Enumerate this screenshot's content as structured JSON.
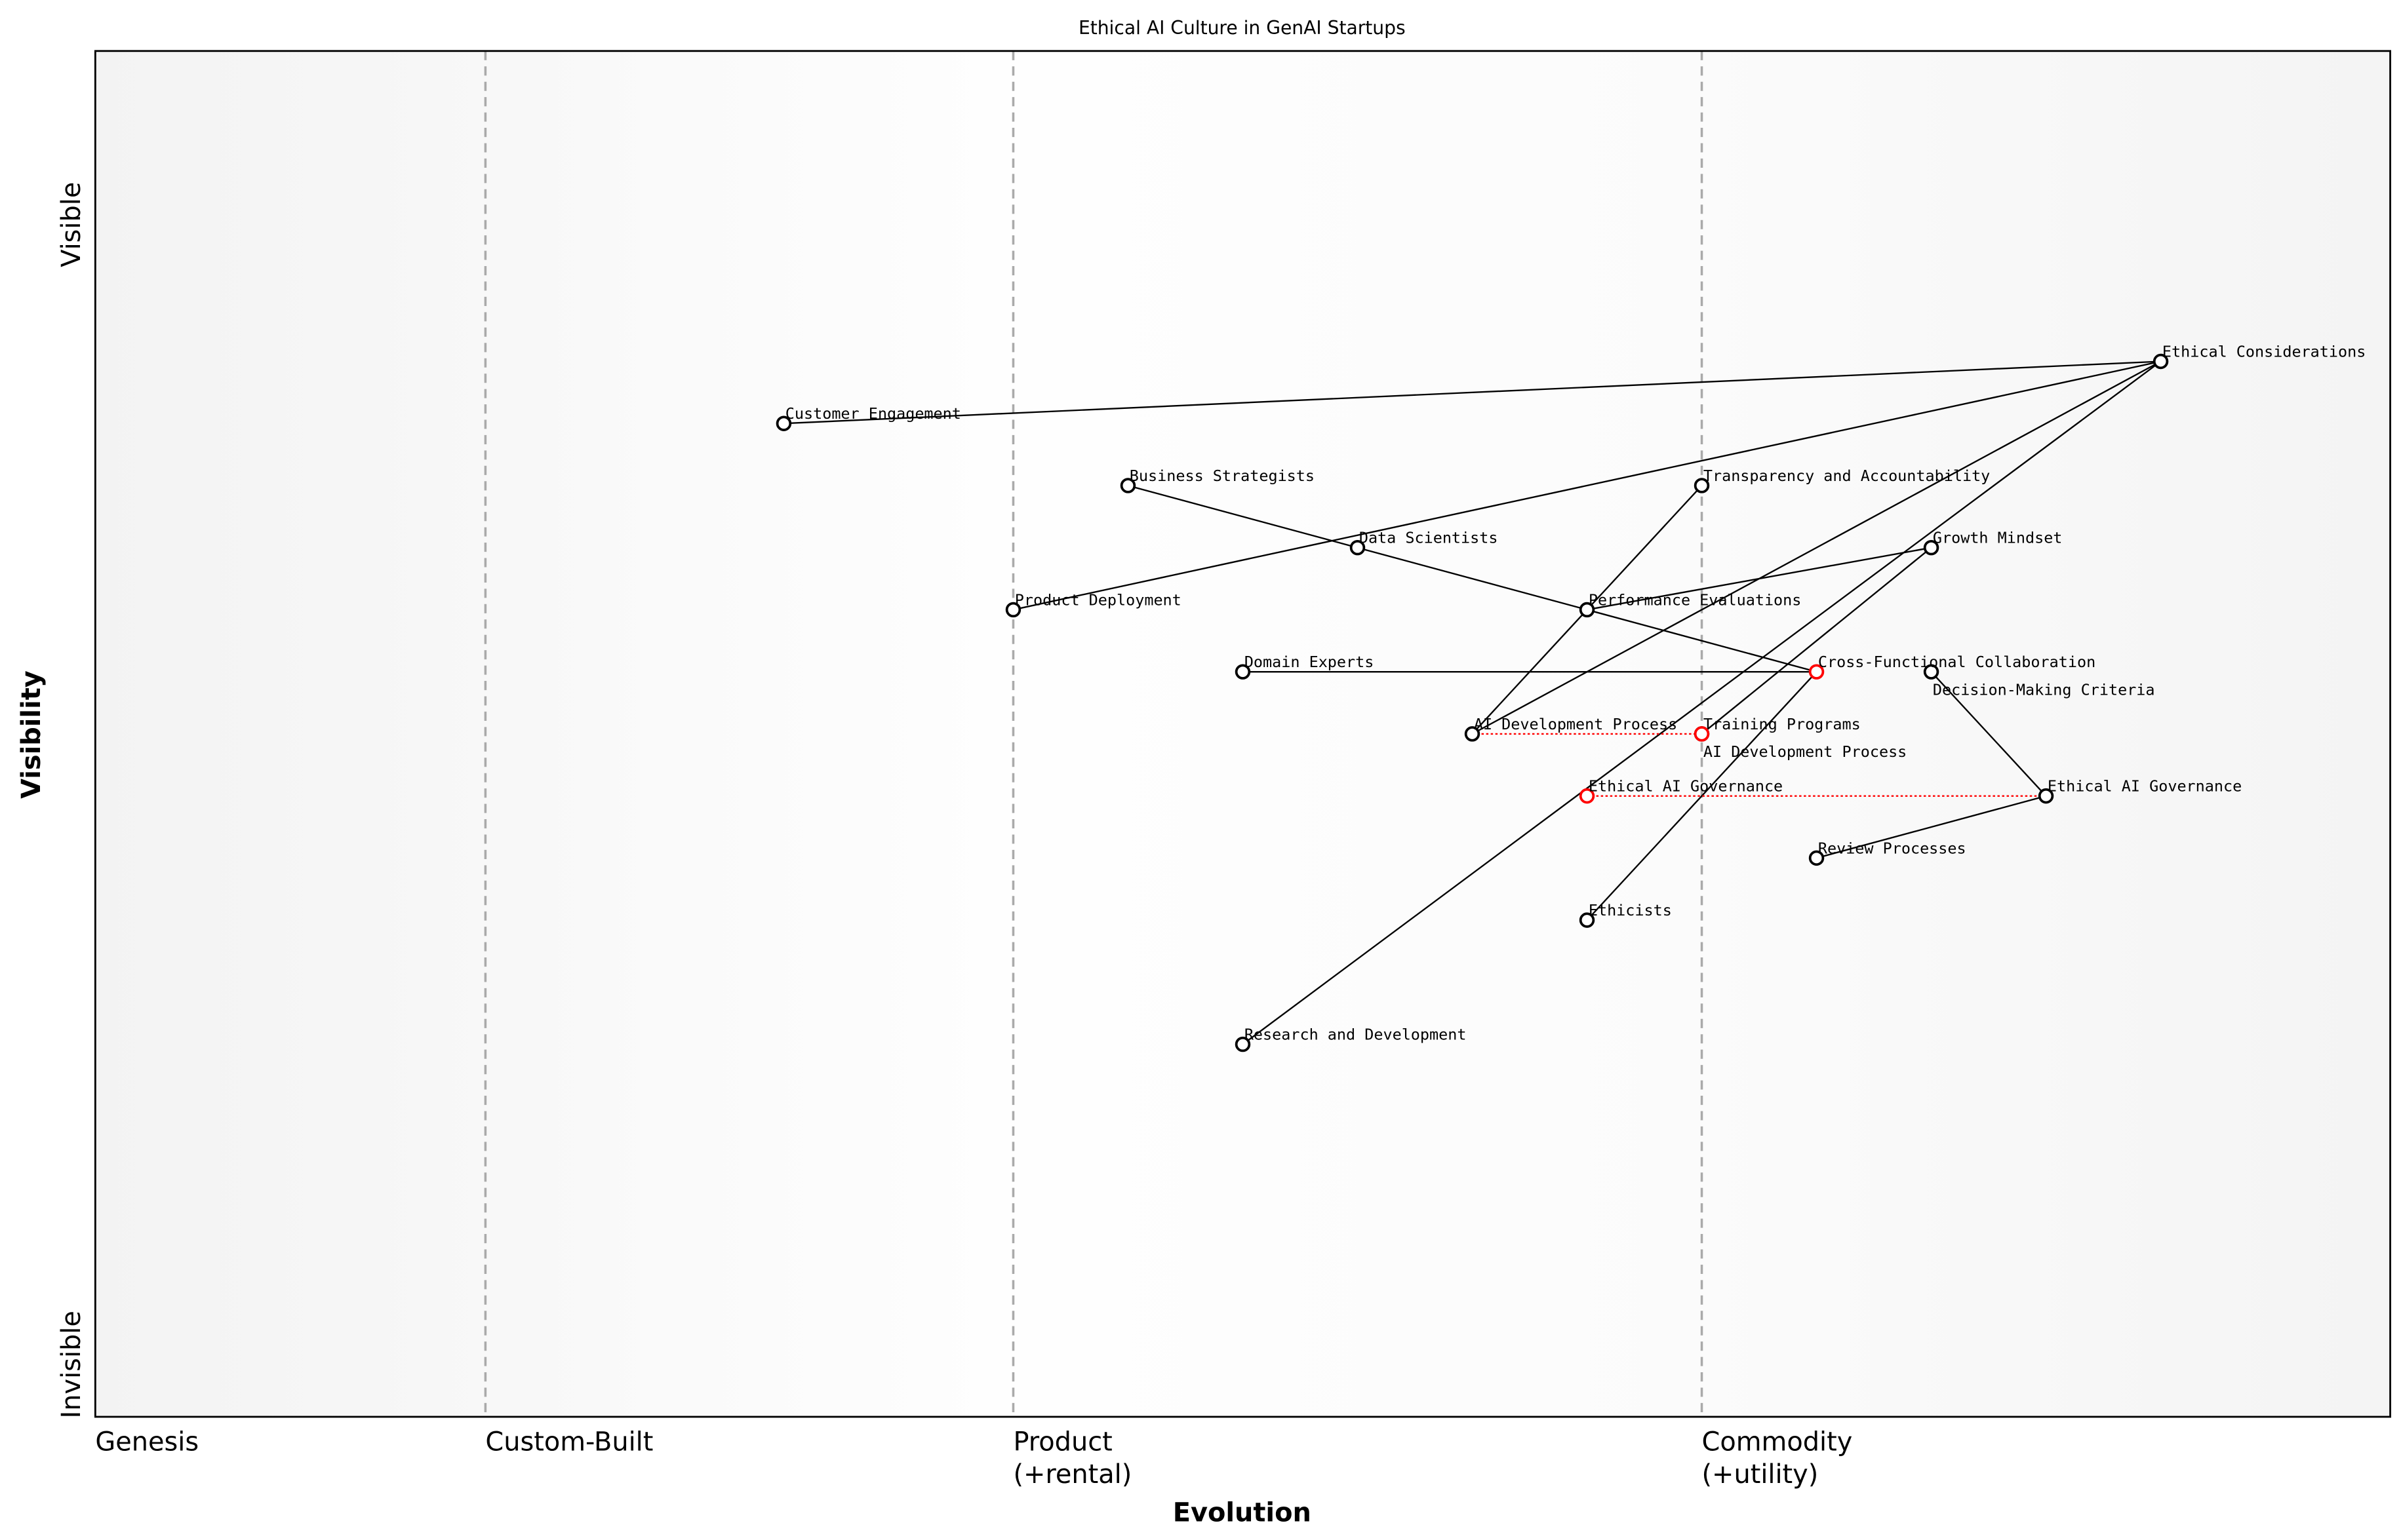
{
  "title": "Ethical AI Culture in GenAI Startups",
  "xlabel": "Evolution",
  "ylabel": "Visibility",
  "y_ticks": {
    "top": "Visible",
    "bottom": "Invisible"
  },
  "stages": [
    {
      "label": "Genesis",
      "at": 0.0
    },
    {
      "label": "Custom-Built",
      "at": 0.17
    },
    {
      "label": "Product\n(+rental)",
      "at": 0.4
    },
    {
      "label": "Commodity\n(+utility)",
      "at": 0.7
    }
  ],
  "chart_data": {
    "type": "wardley-map",
    "xlim": [
      0,
      1
    ],
    "ylim": [
      0,
      1.1
    ],
    "colors": {
      "node": "#000000",
      "evolving_node": "#ff0000",
      "evolution_link": "#ff0000",
      "stage_line": "#aaaaaa"
    },
    "nodes": [
      {
        "id": "ec",
        "label": "Ethical Considerations",
        "evolution": 0.9,
        "visibility": 0.85
      },
      {
        "id": "ce",
        "label": "Customer Engagement",
        "evolution": 0.3,
        "visibility": 0.8
      },
      {
        "id": "bs",
        "label": "Business Strategists",
        "evolution": 0.45,
        "visibility": 0.75
      },
      {
        "id": "ta",
        "label": "Transparency and Accountability",
        "evolution": 0.7,
        "visibility": 0.75
      },
      {
        "id": "ds",
        "label": "Data Scientists",
        "evolution": 0.55,
        "visibility": 0.7
      },
      {
        "id": "gm",
        "label": "Growth Mindset",
        "evolution": 0.8,
        "visibility": 0.7
      },
      {
        "id": "pd",
        "label": "Product Deployment",
        "evolution": 0.4,
        "visibility": 0.65
      },
      {
        "id": "pe",
        "label": "Performance Evaluations",
        "evolution": 0.65,
        "visibility": 0.65
      },
      {
        "id": "de",
        "label": "Domain Experts",
        "evolution": 0.5,
        "visibility": 0.6
      },
      {
        "id": "dmc",
        "label": "Decision-Making Criteria",
        "evolution": 0.8,
        "visibility": 0.6
      },
      {
        "id": "cfc",
        "label": "Cross-Functional Collaboration",
        "evolution": 0.75,
        "visibility": 0.6,
        "evolving": true
      },
      {
        "id": "adp",
        "label": "AI Development Process",
        "evolution": 0.6,
        "visibility": 0.55
      },
      {
        "id": "tp",
        "label": "Training Programs",
        "evolution": 0.7,
        "visibility": 0.55
      },
      {
        "id": "adp2",
        "label": "AI Development Process",
        "evolution": 0.7,
        "visibility": 0.55,
        "evolving": true
      },
      {
        "id": "eag",
        "label": "Ethical AI Governance",
        "evolution": 0.85,
        "visibility": 0.5
      },
      {
        "id": "eag2",
        "label": "Ethical AI Governance",
        "evolution": 0.65,
        "visibility": 0.5,
        "evolving": true
      },
      {
        "id": "rp",
        "label": "Review Processes",
        "evolution": 0.75,
        "visibility": 0.45
      },
      {
        "id": "eth",
        "label": "Ethicists",
        "evolution": 0.65,
        "visibility": 0.4
      },
      {
        "id": "rd",
        "label": "Research and Development",
        "evolution": 0.5,
        "visibility": 0.3
      }
    ],
    "links": [
      [
        "ce",
        "ec"
      ],
      [
        "pd",
        "ec"
      ],
      [
        "adp",
        "ec"
      ],
      [
        "rd",
        "ec"
      ],
      [
        "bs",
        "ds"
      ],
      [
        "ds",
        "pe"
      ],
      [
        "pe",
        "cfc"
      ],
      [
        "pe",
        "gm"
      ],
      [
        "de",
        "cfc"
      ],
      [
        "adp",
        "ta"
      ],
      [
        "gm",
        "tp"
      ],
      [
        "cfc",
        "eth"
      ],
      [
        "dmc",
        "eag"
      ],
      [
        "eag",
        "rp"
      ]
    ],
    "evolution_links": [
      [
        "adp",
        "adp2"
      ],
      [
        "eag2",
        "eag"
      ]
    ]
  }
}
